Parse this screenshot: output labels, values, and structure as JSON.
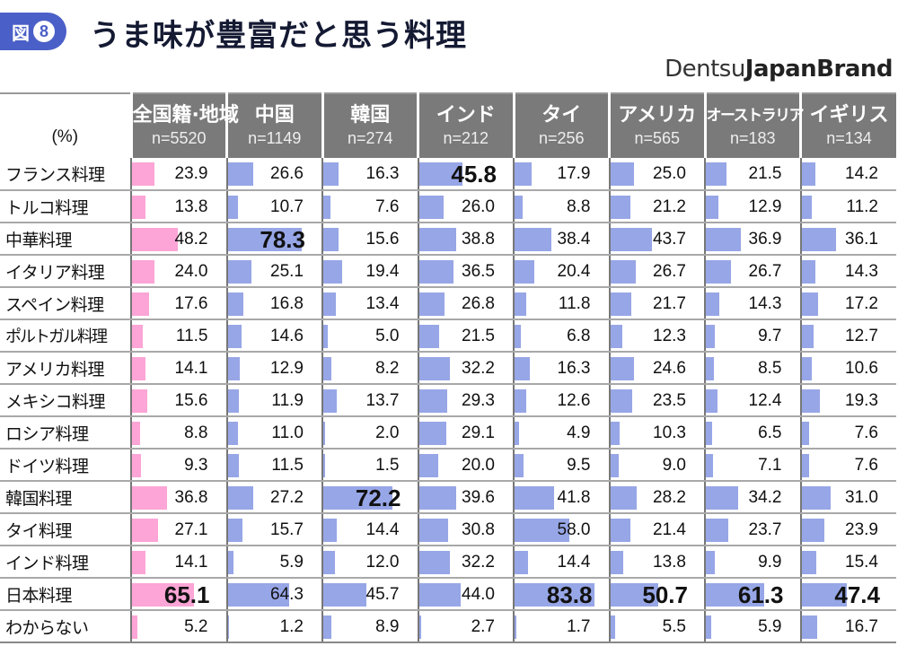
{
  "header": {
    "badge_label": "図",
    "badge_number": "8",
    "title": "うま味が豊富だと思う料理",
    "brand_light": "Dentsu",
    "brand_bold": "JapanBrand"
  },
  "table": {
    "unit_label": "(%)",
    "columns": [
      {
        "name": "全国籍·地域",
        "n": "n=5520"
      },
      {
        "name": "中国",
        "n": "n=1149"
      },
      {
        "name": "韓国",
        "n": "n=274"
      },
      {
        "name": "インド",
        "n": "n=212"
      },
      {
        "name": "タイ",
        "n": "n=256"
      },
      {
        "name": "アメリカ",
        "n": "n=565"
      },
      {
        "name": "オーストラリア",
        "n": "n=183"
      },
      {
        "name": "イギリス",
        "n": "n=134"
      }
    ],
    "rows": [
      {
        "label": "フランス料理",
        "values": [
          "23.9",
          "26.6",
          "16.3",
          "45.8",
          "17.9",
          "25.0",
          "21.5",
          "14.2"
        ]
      },
      {
        "label": "トルコ料理",
        "values": [
          "13.8",
          "10.7",
          "7.6",
          "26.0",
          "8.8",
          "21.2",
          "12.9",
          "11.2"
        ]
      },
      {
        "label": "中華料理",
        "values": [
          "48.2",
          "78.3",
          "15.6",
          "38.8",
          "38.4",
          "43.7",
          "36.9",
          "36.1"
        ]
      },
      {
        "label": "イタリア料理",
        "values": [
          "24.0",
          "25.1",
          "19.4",
          "36.5",
          "20.4",
          "26.7",
          "26.7",
          "14.3"
        ]
      },
      {
        "label": "スペイン料理",
        "values": [
          "17.6",
          "16.8",
          "13.4",
          "26.8",
          "11.8",
          "21.7",
          "14.3",
          "17.2"
        ]
      },
      {
        "label": "ポルトガル料理",
        "values": [
          "11.5",
          "14.6",
          "5.0",
          "21.5",
          "6.8",
          "12.3",
          "9.7",
          "12.7"
        ]
      },
      {
        "label": "アメリカ料理",
        "values": [
          "14.1",
          "12.9",
          "8.2",
          "32.2",
          "16.3",
          "24.6",
          "8.5",
          "10.6"
        ]
      },
      {
        "label": "メキシコ料理",
        "values": [
          "15.6",
          "11.9",
          "13.7",
          "29.3",
          "12.6",
          "23.5",
          "12.4",
          "19.3"
        ]
      },
      {
        "label": "ロシア料理",
        "values": [
          "8.8",
          "11.0",
          "2.0",
          "29.1",
          "4.9",
          "10.3",
          "6.5",
          "7.6"
        ]
      },
      {
        "label": "ドイツ料理",
        "values": [
          "9.3",
          "11.5",
          "1.5",
          "20.0",
          "9.5",
          "9.0",
          "7.1",
          "7.6"
        ]
      },
      {
        "label": "韓国料理",
        "values": [
          "36.8",
          "27.2",
          "72.2",
          "39.6",
          "41.8",
          "28.2",
          "34.2",
          "31.0"
        ]
      },
      {
        "label": "タイ料理",
        "values": [
          "27.1",
          "15.7",
          "14.4",
          "30.8",
          "58.0",
          "21.4",
          "23.7",
          "23.9"
        ]
      },
      {
        "label": "インド料理",
        "values": [
          "14.1",
          "5.9",
          "12.0",
          "32.2",
          "14.4",
          "13.8",
          "9.9",
          "15.4"
        ]
      },
      {
        "label": "日本料理",
        "values": [
          "65.1",
          "64.3",
          "45.7",
          "44.0",
          "83.8",
          "50.7",
          "61.3",
          "47.4"
        ]
      },
      {
        "label": "わからない",
        "values": [
          "5.2",
          "1.2",
          "8.9",
          "2.7",
          "1.7",
          "5.5",
          "5.9",
          "16.7"
        ]
      }
    ],
    "highlight_max_per_column": [
      "65.1",
      "78.3",
      "72.2",
      "45.8",
      "83.8",
      "50.7",
      "61.3",
      "47.4"
    ],
    "colors": {
      "overall_bar": "#fca5d6",
      "country_bar": "#97a6e6",
      "header_bg": "#7a7a7a",
      "badge": "#4a5fc7"
    }
  },
  "chart_data": {
    "type": "table",
    "title": "うま味が豊富だと思う料理",
    "unit": "%",
    "categories": [
      "フランス料理",
      "トルコ料理",
      "中華料理",
      "イタリア料理",
      "スペイン料理",
      "ポルトガル料理",
      "アメリカ料理",
      "メキシコ料理",
      "ロシア料理",
      "ドイツ料理",
      "韓国料理",
      "タイ料理",
      "インド料理",
      "日本料理",
      "わからない"
    ],
    "series": [
      {
        "name": "全国籍·地域 (n=5520)",
        "values": [
          23.9,
          13.8,
          48.2,
          24.0,
          17.6,
          11.5,
          14.1,
          15.6,
          8.8,
          9.3,
          36.8,
          27.1,
          14.1,
          65.1,
          5.2
        ]
      },
      {
        "name": "中国 (n=1149)",
        "values": [
          26.6,
          10.7,
          78.3,
          25.1,
          16.8,
          14.6,
          12.9,
          11.9,
          11.0,
          11.5,
          27.2,
          15.7,
          5.9,
          64.3,
          1.2
        ]
      },
      {
        "name": "韓国 (n=274)",
        "values": [
          16.3,
          7.6,
          15.6,
          19.4,
          13.4,
          5.0,
          8.2,
          13.7,
          2.0,
          1.5,
          72.2,
          14.4,
          12.0,
          45.7,
          8.9
        ]
      },
      {
        "name": "インド (n=212)",
        "values": [
          45.8,
          26.0,
          38.8,
          36.5,
          26.8,
          21.5,
          32.2,
          29.3,
          29.1,
          20.0,
          39.6,
          30.8,
          32.2,
          44.0,
          2.7
        ]
      },
      {
        "name": "タイ (n=256)",
        "values": [
          17.9,
          8.8,
          38.4,
          20.4,
          11.8,
          6.8,
          16.3,
          12.6,
          4.9,
          9.5,
          41.8,
          58.0,
          14.4,
          83.8,
          1.7
        ]
      },
      {
        "name": "アメリカ (n=565)",
        "values": [
          25.0,
          21.2,
          43.7,
          26.7,
          21.7,
          12.3,
          24.6,
          23.5,
          10.3,
          9.0,
          28.2,
          21.4,
          13.8,
          50.7,
          5.5
        ]
      },
      {
        "name": "オーストラリア (n=183)",
        "values": [
          21.5,
          12.9,
          36.9,
          26.7,
          14.3,
          9.7,
          8.5,
          12.4,
          6.5,
          7.1,
          34.2,
          23.7,
          9.9,
          61.3,
          5.9
        ]
      },
      {
        "name": "イギリス (n=134)",
        "values": [
          14.2,
          11.2,
          36.1,
          14.3,
          17.2,
          12.7,
          10.6,
          19.3,
          7.6,
          7.6,
          31.0,
          23.9,
          15.4,
          47.4,
          16.7
        ]
      }
    ],
    "source": "DentsuJapanBrand"
  }
}
